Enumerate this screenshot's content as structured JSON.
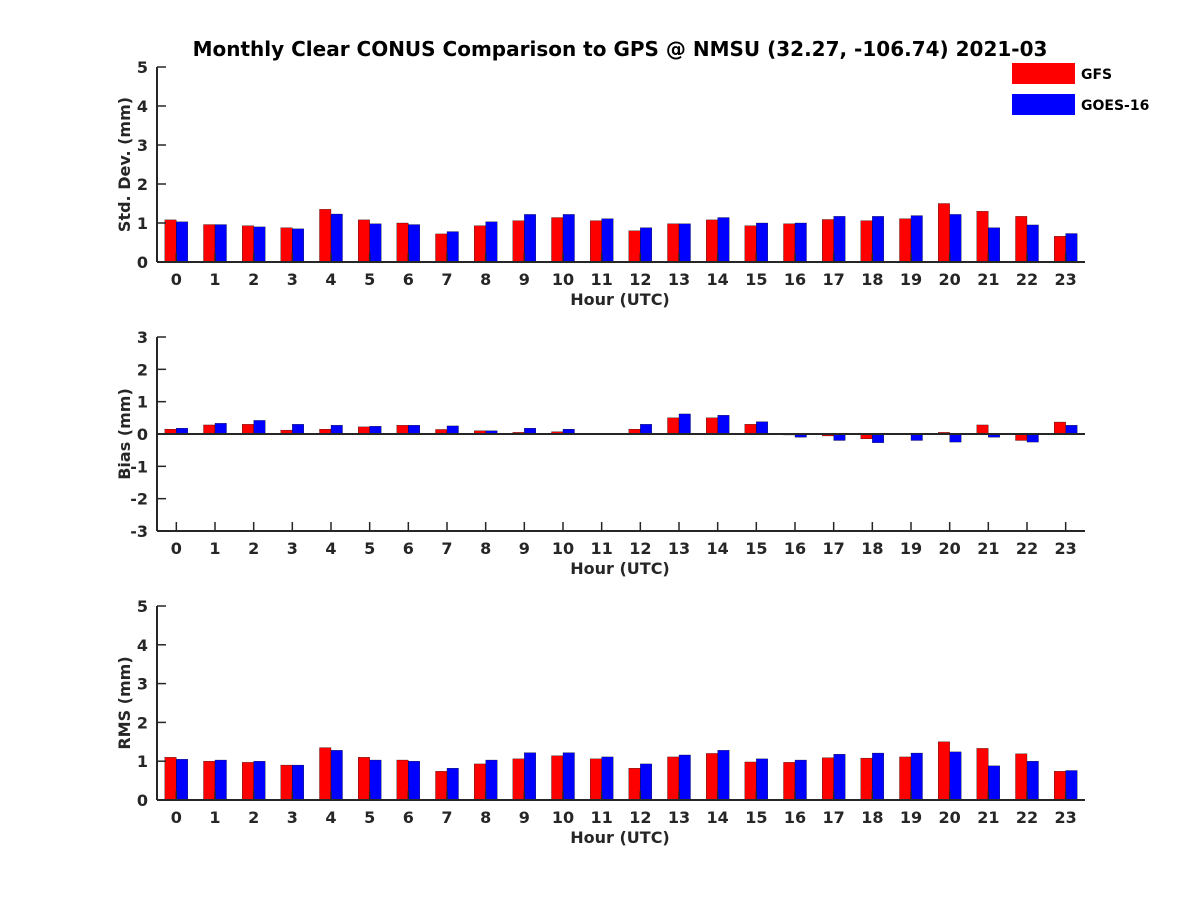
{
  "figure": {
    "title": "Monthly Clear CONUS Comparison to GPS @ NMSU (32.27, -106.74) 2021-03"
  },
  "legend": {
    "placement": "top-right",
    "items": [
      {
        "label": "GFS",
        "color": "#ff0000"
      },
      {
        "label": "GOES-16",
        "color": "#0000ff"
      }
    ]
  },
  "chart_data": [
    {
      "type": "bar",
      "xlabel": "Hour (UTC)",
      "ylabel": "Std. Dev. (mm)",
      "ylim": [
        0,
        5
      ],
      "yticks": [
        0,
        1,
        2,
        3,
        4,
        5
      ],
      "categories": [
        "0",
        "1",
        "2",
        "3",
        "4",
        "5",
        "6",
        "7",
        "8",
        "9",
        "10",
        "11",
        "12",
        "13",
        "14",
        "15",
        "16",
        "17",
        "18",
        "19",
        "20",
        "21",
        "22",
        "23"
      ],
      "series": [
        {
          "name": "GFS",
          "color": "#ff0000",
          "values": [
            1.08,
            0.96,
            0.93,
            0.88,
            1.35,
            1.08,
            1.0,
            0.72,
            0.93,
            1.06,
            1.14,
            1.06,
            0.8,
            0.98,
            1.08,
            0.93,
            0.98,
            1.09,
            1.06,
            1.11,
            1.5,
            1.3,
            1.17,
            0.66
          ]
        },
        {
          "name": "GOES-16",
          "color": "#0000ff",
          "values": [
            1.03,
            0.96,
            0.9,
            0.85,
            1.23,
            0.98,
            0.96,
            0.78,
            1.03,
            1.22,
            1.22,
            1.11,
            0.88,
            0.98,
            1.14,
            1.0,
            1.0,
            1.17,
            1.17,
            1.19,
            1.22,
            0.88,
            0.95,
            0.73
          ]
        }
      ]
    },
    {
      "type": "bar",
      "xlabel": "Hour (UTC)",
      "ylabel": "Bias (mm)",
      "ylim": [
        -3,
        3
      ],
      "yticks": [
        -3,
        -2,
        -1,
        0,
        1,
        2,
        3
      ],
      "categories": [
        "0",
        "1",
        "2",
        "3",
        "4",
        "5",
        "6",
        "7",
        "8",
        "9",
        "10",
        "11",
        "12",
        "13",
        "14",
        "15",
        "16",
        "17",
        "18",
        "19",
        "20",
        "21",
        "22",
        "23"
      ],
      "series": [
        {
          "name": "GFS",
          "color": "#ff0000",
          "values": [
            0.15,
            0.28,
            0.3,
            0.12,
            0.15,
            0.22,
            0.27,
            0.14,
            0.1,
            0.05,
            0.07,
            0.02,
            0.15,
            0.5,
            0.5,
            0.3,
            -0.03,
            -0.06,
            -0.15,
            -0.02,
            0.05,
            0.28,
            -0.2,
            0.37
          ]
        },
        {
          "name": "GOES-16",
          "color": "#0000ff",
          "values": [
            0.18,
            0.33,
            0.42,
            0.3,
            0.27,
            0.24,
            0.27,
            0.25,
            0.1,
            0.18,
            0.15,
            0.02,
            0.3,
            0.62,
            0.58,
            0.38,
            -0.1,
            -0.2,
            -0.27,
            -0.2,
            -0.25,
            -0.1,
            -0.25,
            0.27
          ]
        }
      ]
    },
    {
      "type": "bar",
      "xlabel": "Hour (UTC)",
      "ylabel": "RMS (mm)",
      "ylim": [
        0,
        5
      ],
      "yticks": [
        0,
        1,
        2,
        3,
        4,
        5
      ],
      "categories": [
        "0",
        "1",
        "2",
        "3",
        "4",
        "5",
        "6",
        "7",
        "8",
        "9",
        "10",
        "11",
        "12",
        "13",
        "14",
        "15",
        "16",
        "17",
        "18",
        "19",
        "20",
        "21",
        "22",
        "23"
      ],
      "series": [
        {
          "name": "GFS",
          "color": "#ff0000",
          "values": [
            1.1,
            1.0,
            0.97,
            0.9,
            1.35,
            1.1,
            1.03,
            0.74,
            0.93,
            1.06,
            1.14,
            1.06,
            0.82,
            1.11,
            1.2,
            0.98,
            0.97,
            1.09,
            1.08,
            1.11,
            1.5,
            1.33,
            1.19,
            0.74
          ]
        },
        {
          "name": "GOES-16",
          "color": "#0000ff",
          "values": [
            1.05,
            1.03,
            1.0,
            0.9,
            1.28,
            1.03,
            1.0,
            0.82,
            1.03,
            1.22,
            1.22,
            1.11,
            0.93,
            1.16,
            1.28,
            1.06,
            1.03,
            1.18,
            1.21,
            1.21,
            1.24,
            0.88,
            1.0,
            0.76
          ]
        }
      ]
    }
  ]
}
